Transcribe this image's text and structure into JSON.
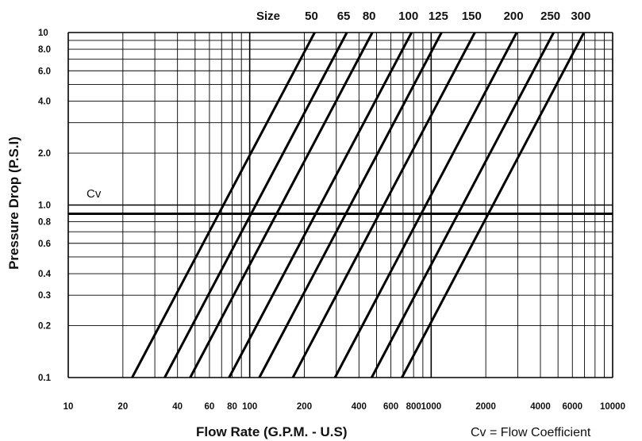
{
  "chart_data": {
    "type": "line",
    "title": "",
    "xlabel": "Flow Rate (G.P.M. - U.S)",
    "ylabel": "Pressure Drop (P.S.I)",
    "x_scale": "log",
    "y_scale": "log",
    "xlim": [
      10,
      10000
    ],
    "ylim": [
      0.1,
      10
    ],
    "grid": true,
    "x_tick_labels": [
      "10",
      "20",
      "40",
      "60",
      "80",
      "100",
      "200",
      "400",
      "600",
      "800",
      "1000",
      "2000",
      "4000",
      "6000",
      "10000"
    ],
    "y_tick_labels": [
      "10",
      "8.0",
      "6.0",
      "4.0",
      "2.0",
      "1.0",
      "0.8",
      "0.6",
      "0.4",
      "0.3",
      "0.2",
      "0.1"
    ],
    "size_heading": "Size",
    "series": [
      {
        "name": "50",
        "x": [
          22.5,
          228
        ],
        "y": [
          0.1,
          10
        ]
      },
      {
        "name": "65",
        "x": [
          34,
          343
        ],
        "y": [
          0.1,
          10
        ]
      },
      {
        "name": "80",
        "x": [
          47,
          474
        ],
        "y": [
          0.1,
          10
        ]
      },
      {
        "name": "100",
        "x": [
          77,
          780
        ],
        "y": [
          0.1,
          10
        ]
      },
      {
        "name": "125",
        "x": [
          113,
          1140
        ],
        "y": [
          0.1,
          10
        ]
      },
      {
        "name": "150",
        "x": [
          173,
          1740
        ],
        "y": [
          0.1,
          10
        ]
      },
      {
        "name": "200",
        "x": [
          295,
          2960
        ],
        "y": [
          0.1,
          10
        ]
      },
      {
        "name": "250",
        "x": [
          470,
          4730
        ],
        "y": [
          0.1,
          10
        ]
      },
      {
        "name": "300",
        "x": [
          690,
          6950
        ],
        "y": [
          0.1,
          10
        ]
      }
    ],
    "reference_line": {
      "label": "Cv",
      "y": 0.89
    },
    "annotation": "Cv = Flow Coefficient"
  }
}
